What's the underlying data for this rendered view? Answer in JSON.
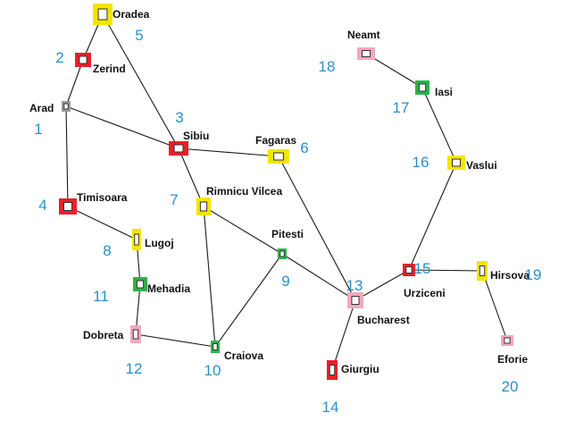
{
  "colors": {
    "red": "#e8202a",
    "yellow": "#f2e600",
    "green": "#2fb14a",
    "pink": "#f4a7be",
    "grey": "#9a9a9a",
    "label_blue": "#2a8fc9"
  },
  "nodes": [
    {
      "id": "arad",
      "name": "Arad",
      "order": "1",
      "color": "grey"
    },
    {
      "id": "zerind",
      "name": "Zerind",
      "order": "2",
      "color": "red"
    },
    {
      "id": "sibiu",
      "name": "Sibiu",
      "order": "3",
      "color": "red"
    },
    {
      "id": "timisoara",
      "name": "Timisoara",
      "order": "4",
      "color": "red"
    },
    {
      "id": "oradea",
      "name": "Oradea",
      "order": "5",
      "color": "yellow"
    },
    {
      "id": "fagaras",
      "name": "Fagaras",
      "order": "6",
      "color": "yellow"
    },
    {
      "id": "rimnicu",
      "name": "Rimnicu Vilcea",
      "order": "7",
      "color": "yellow"
    },
    {
      "id": "lugoj",
      "name": "Lugoj",
      "order": "8",
      "color": "yellow"
    },
    {
      "id": "pitesti",
      "name": "Pitesti",
      "order": "9",
      "color": "green"
    },
    {
      "id": "craiova",
      "name": "Craiova",
      "order": "10",
      "color": "green"
    },
    {
      "id": "mehadia",
      "name": "Mehadia",
      "order": "11",
      "color": "green"
    },
    {
      "id": "dobreta",
      "name": "Dobreta",
      "order": "12",
      "color": "pink"
    },
    {
      "id": "bucharest",
      "name": "Bucharest",
      "order": "13",
      "color": "pink"
    },
    {
      "id": "giurgiu",
      "name": "Giurgiu",
      "order": "14",
      "color": "red"
    },
    {
      "id": "urziceni",
      "name": "Urziceni",
      "order": "15",
      "color": "red"
    },
    {
      "id": "vaslui",
      "name": "Vaslui",
      "order": "16",
      "color": "yellow"
    },
    {
      "id": "iasi",
      "name": "Iasi",
      "order": "17",
      "color": "green"
    },
    {
      "id": "neamt",
      "name": "Neamt",
      "order": "18",
      "color": "pink"
    },
    {
      "id": "hirsova",
      "name": "Hirsova",
      "order": "19",
      "color": "yellow"
    },
    {
      "id": "eforie",
      "name": "Eforie",
      "order": "20",
      "color": "pink"
    }
  ],
  "edges": [
    [
      "oradea",
      "zerind"
    ],
    [
      "zerind",
      "arad"
    ],
    [
      "oradea",
      "sibiu"
    ],
    [
      "arad",
      "sibiu"
    ],
    [
      "arad",
      "timisoara"
    ],
    [
      "sibiu",
      "fagaras"
    ],
    [
      "sibiu",
      "rimnicu"
    ],
    [
      "timisoara",
      "lugoj"
    ],
    [
      "lugoj",
      "mehadia"
    ],
    [
      "mehadia",
      "dobreta"
    ],
    [
      "dobreta",
      "craiova"
    ],
    [
      "rimnicu",
      "craiova"
    ],
    [
      "rimnicu",
      "pitesti"
    ],
    [
      "craiova",
      "pitesti"
    ],
    [
      "pitesti",
      "bucharest"
    ],
    [
      "fagaras",
      "bucharest"
    ],
    [
      "bucharest",
      "giurgiu"
    ],
    [
      "bucharest",
      "urziceni"
    ],
    [
      "urziceni",
      "vaslui"
    ],
    [
      "vaslui",
      "iasi"
    ],
    [
      "iasi",
      "neamt"
    ],
    [
      "urziceni",
      "hirsova"
    ],
    [
      "hirsova",
      "eforie"
    ]
  ]
}
